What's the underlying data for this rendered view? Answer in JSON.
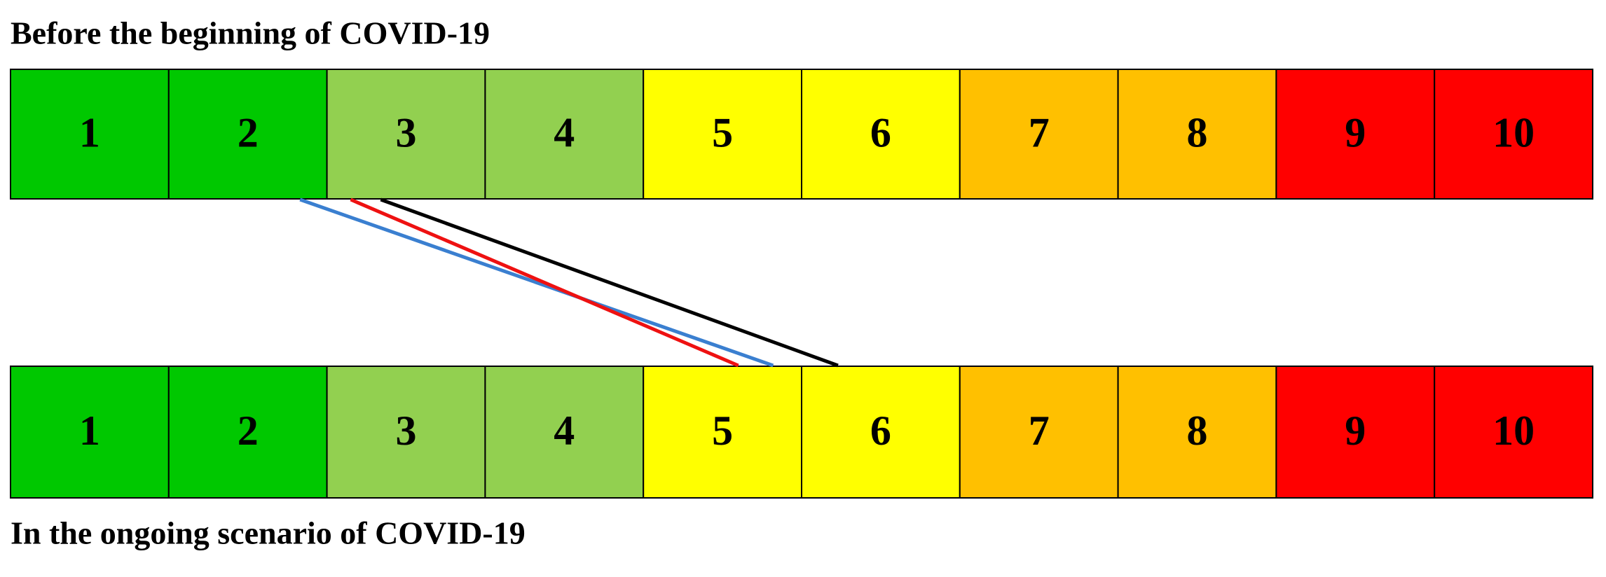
{
  "top": {
    "title": "Before the beginning of COVID-19",
    "cells": [
      {
        "label": "1",
        "color": "#00c800"
      },
      {
        "label": "2",
        "color": "#00c800"
      },
      {
        "label": "3",
        "color": "#92d050"
      },
      {
        "label": "4",
        "color": "#92d050"
      },
      {
        "label": "5",
        "color": "#ffff00"
      },
      {
        "label": "6",
        "color": "#ffff00"
      },
      {
        "label": "7",
        "color": "#ffc000"
      },
      {
        "label": "8",
        "color": "#ffc000"
      },
      {
        "label": "9",
        "color": "#ff0000"
      },
      {
        "label": "10",
        "color": "#ff0000"
      }
    ]
  },
  "bottom": {
    "title": "In the ongoing scenario of COVID-19",
    "cells": [
      {
        "label": "1",
        "color": "#00c800"
      },
      {
        "label": "2",
        "color": "#00c800"
      },
      {
        "label": "3",
        "color": "#92d050"
      },
      {
        "label": "4",
        "color": "#92d050"
      },
      {
        "label": "5",
        "color": "#ffff00"
      },
      {
        "label": "6",
        "color": "#ffff00"
      },
      {
        "label": "7",
        "color": "#ffc000"
      },
      {
        "label": "8",
        "color": "#ffc000"
      },
      {
        "label": "9",
        "color": "#ff0000"
      },
      {
        "label": "10",
        "color": "#ff0000"
      }
    ]
  },
  "links": [
    {
      "color": "#3a7fd0",
      "from": 2.33,
      "to": 5.32
    },
    {
      "color": "#ee1111",
      "from": 2.65,
      "to": 5.1
    },
    {
      "color": "#000000",
      "from": 2.84,
      "to": 5.73
    }
  ]
}
